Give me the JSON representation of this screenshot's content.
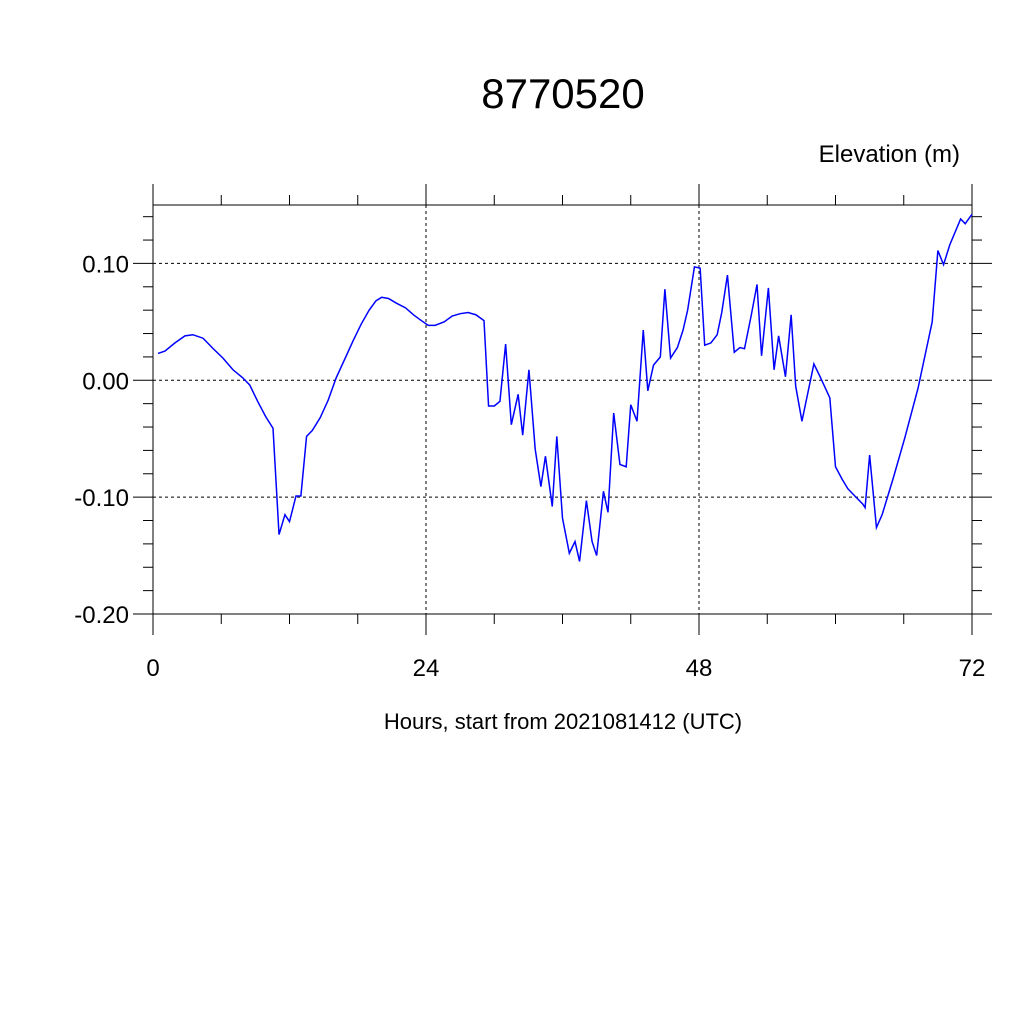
{
  "chart_data": {
    "type": "line",
    "title": "8770520",
    "y_label": "Elevation (m)",
    "x_label": "Hours, start from 2021081412 (UTC)",
    "x": [
      0.44,
      1.05,
      1.93,
      2.81,
      3.5,
      4.4,
      5.3,
      6.15,
      7.03,
      7.9,
      8.5,
      9.2,
      9.9,
      10.55,
      11.08,
      11.6,
      12.0,
      12.57,
      13.0,
      13.5,
      14.0,
      14.7,
      15.4,
      16.1,
      16.9,
      17.6,
      18.3,
      19.0,
      19.6,
      20.1,
      20.7,
      21.4,
      22.2,
      22.9,
      23.6,
      24.2,
      24.8,
      25.6,
      26.3,
      27.0,
      27.7,
      28.4,
      29.1,
      29.5,
      30.0,
      30.5,
      31.0,
      31.5,
      32.1,
      32.5,
      33.05,
      33.6,
      34.1,
      34.5,
      35.1,
      35.5,
      36.0,
      36.6,
      37.1,
      37.5,
      38.1,
      38.6,
      39.0,
      39.6,
      40.0,
      40.5,
      41.05,
      41.6,
      42.0,
      42.55,
      43.1,
      43.5,
      44.0,
      44.6,
      45.0,
      45.5,
      46.1,
      46.6,
      47.0,
      47.6,
      48.1,
      48.5,
      49.05,
      49.6,
      50.0,
      50.5,
      51.1,
      51.6,
      52.0,
      52.6,
      53.1,
      53.5,
      54.1,
      54.6,
      55.0,
      55.6,
      56.1,
      56.5,
      57.05,
      58.1,
      58.6,
      59.5,
      60.0,
      60.6,
      61.1,
      61.7,
      62.4,
      62.6,
      63.0,
      63.6,
      64.1,
      65.1,
      66.1,
      67.25,
      68.5,
      69.0,
      69.5,
      70.05,
      71.0,
      71.4,
      72.0
    ],
    "values": [
      0.023,
      0.025,
      0.032,
      0.038,
      0.039,
      0.036,
      0.027,
      0.019,
      0.009,
      0.002,
      -0.004,
      -0.018,
      -0.031,
      -0.041,
      -0.132,
      -0.115,
      -0.121,
      -0.099,
      -0.099,
      -0.048,
      -0.043,
      -0.032,
      -0.017,
      0.002,
      0.019,
      0.034,
      0.048,
      0.06,
      0.068,
      0.071,
      0.07,
      0.066,
      0.062,
      0.056,
      0.051,
      0.047,
      0.047,
      0.05,
      0.055,
      0.057,
      0.058,
      0.056,
      0.051,
      -0.022,
      -0.022,
      -0.018,
      0.031,
      -0.038,
      -0.012,
      -0.047,
      0.009,
      -0.059,
      -0.091,
      -0.065,
      -0.108,
      -0.048,
      -0.118,
      -0.148,
      -0.138,
      -0.155,
      -0.103,
      -0.138,
      -0.15,
      -0.095,
      -0.113,
      -0.028,
      -0.072,
      -0.074,
      -0.021,
      -0.035,
      0.043,
      -0.009,
      0.013,
      0.02,
      0.078,
      0.019,
      0.028,
      0.043,
      0.06,
      0.097,
      0.096,
      0.03,
      0.032,
      0.039,
      0.058,
      0.09,
      0.024,
      0.028,
      0.027,
      0.056,
      0.082,
      0.021,
      0.079,
      0.009,
      0.038,
      0.003,
      0.056,
      -0.005,
      -0.035,
      0.014,
      0.004,
      -0.015,
      -0.074,
      -0.085,
      -0.093,
      -0.099,
      -0.106,
      -0.109,
      -0.064,
      -0.126,
      -0.115,
      -0.083,
      -0.049,
      -0.007,
      0.05,
      0.111,
      0.099,
      0.116,
      0.138,
      0.134,
      0.142
    ],
    "color": "#0000ff",
    "xlim": [
      0,
      72
    ],
    "xticks": [
      0,
      24,
      48,
      72
    ],
    "xminorticks": [
      6,
      12,
      18,
      30,
      36,
      42,
      54,
      60,
      66
    ],
    "ylim": [
      -0.2,
      0.15
    ],
    "yticks": [
      {
        "value": -0.2,
        "label": "-0.20"
      },
      {
        "value": -0.1,
        "label": "-0.10"
      },
      {
        "value": 0,
        "label": "0.00"
      },
      {
        "value": 0.1,
        "label": "0.10"
      }
    ],
    "yminorticks": [
      -0.18,
      -0.16,
      -0.14,
      -0.12,
      -0.08,
      -0.06,
      -0.04,
      -0.02,
      0.02,
      0.04,
      0.06,
      0.08,
      0.12,
      0.14
    ],
    "grid": true
  }
}
